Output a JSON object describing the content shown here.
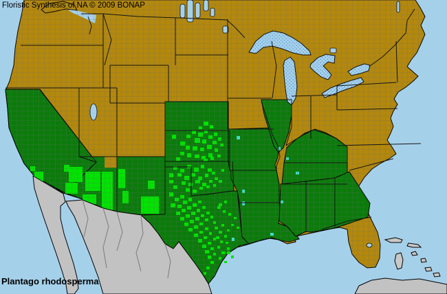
{
  "title": "Floristic Synthesis of NA © 2009 BONAP",
  "species": "Plantago rhodosperma",
  "map": {
    "colors": {
      "water": "#A5D0EA",
      "lake_dot": "#5B9BD5",
      "absent": "#B3880D",
      "state_present": "#0B7B0B",
      "county_present": "#00E400",
      "adventive": "#3FDCC8",
      "outside": "#C2C2C2",
      "county_line": "#6b6b6b",
      "state_line": "#151515"
    },
    "regions": {
      "ocean": "water",
      "strait_water": "water",
      "land_base": "absent",
      "vancouver_island": "absent",
      "arizona_ne_patch": "absent",
      "california": "state_present",
      "arizona": "state_present",
      "new_mexico": "state_present",
      "texas": "state_present",
      "oklahoma": "state_present",
      "kansas": "state_present",
      "nebraska": "state_present",
      "missouri": "state_present",
      "illinois": "state_present",
      "arkansas": "state_present",
      "louisiana": "state_present",
      "mississippi": "state_present",
      "alabama": "state_present",
      "georgia": "state_present",
      "tennessee": "state_present",
      "kentucky": "state_present",
      "mexico_mainland": "outside",
      "baja_california": "outside",
      "cuba": "outside",
      "bahamas": "outside"
    },
    "county_dots": [
      [
        50,
        250,
        13,
        18,
        "c"
      ],
      [
        44,
        242,
        7,
        7,
        "c"
      ],
      [
        95,
        266,
        18,
        16,
        "c"
      ],
      [
        100,
        243,
        20,
        22,
        "c"
      ],
      [
        124,
        250,
        22,
        28,
        "c"
      ],
      [
        148,
        250,
        16,
        56,
        "c"
      ],
      [
        120,
        283,
        20,
        14,
        "c"
      ],
      [
        93,
        240,
        8,
        10,
        "c"
      ],
      [
        172,
        246,
        10,
        28,
        "c"
      ],
      [
        178,
        278,
        9,
        18,
        "c"
      ],
      [
        205,
        286,
        26,
        26,
        "c"
      ],
      [
        215,
        263,
        10,
        12,
        "c"
      ],
      [
        296,
        177,
        7,
        6,
        "c"
      ],
      [
        305,
        182,
        5,
        5,
        "c"
      ],
      [
        289,
        184,
        5,
        4,
        "c"
      ],
      [
        250,
        196,
        6,
        6,
        "c"
      ],
      [
        262,
        206,
        7,
        6,
        "c"
      ],
      [
        271,
        196,
        6,
        5,
        "c"
      ],
      [
        279,
        190,
        6,
        5,
        "c"
      ],
      [
        288,
        193,
        7,
        6,
        "c"
      ],
      [
        297,
        189,
        5,
        5,
        "c"
      ],
      [
        283,
        201,
        8,
        7,
        "c"
      ],
      [
        294,
        203,
        6,
        6,
        "c"
      ],
      [
        303,
        197,
        6,
        5,
        "c"
      ],
      [
        311,
        193,
        5,
        5,
        "c"
      ],
      [
        270,
        212,
        6,
        6,
        "c"
      ],
      [
        280,
        213,
        7,
        6,
        "c"
      ],
      [
        291,
        215,
        6,
        5,
        "c"
      ],
      [
        301,
        211,
        7,
        6,
        "c"
      ],
      [
        309,
        205,
        6,
        5,
        "c"
      ],
      [
        317,
        200,
        5,
        5,
        "c"
      ],
      [
        262,
        221,
        6,
        5,
        "c"
      ],
      [
        272,
        223,
        6,
        6,
        "c"
      ],
      [
        283,
        225,
        7,
        5,
        "c"
      ],
      [
        293,
        227,
        6,
        5,
        "c"
      ],
      [
        303,
        223,
        6,
        6,
        "c"
      ],
      [
        312,
        216,
        5,
        5,
        "c"
      ],
      [
        320,
        209,
        5,
        4,
        "c"
      ],
      [
        256,
        229,
        6,
        5,
        "c"
      ],
      [
        296,
        231,
        6,
        4,
        "c"
      ],
      [
        306,
        228,
        5,
        5,
        "c"
      ],
      [
        316,
        225,
        5,
        4,
        "c"
      ],
      [
        252,
        242,
        6,
        5,
        "c"
      ],
      [
        262,
        246,
        6,
        5,
        "c"
      ],
      [
        272,
        240,
        6,
        5,
        "c"
      ],
      [
        282,
        244,
        7,
        6,
        "c"
      ],
      [
        292,
        240,
        5,
        5,
        "c"
      ],
      [
        302,
        245,
        6,
        5,
        "c"
      ],
      [
        258,
        252,
        6,
        5,
        "c"
      ],
      [
        268,
        256,
        7,
        6,
        "c"
      ],
      [
        278,
        252,
        6,
        5,
        "c"
      ],
      [
        288,
        257,
        6,
        5,
        "c"
      ],
      [
        298,
        253,
        5,
        5,
        "c"
      ],
      [
        308,
        250,
        5,
        4,
        "c"
      ],
      [
        264,
        264,
        6,
        5,
        "c"
      ],
      [
        274,
        266,
        6,
        5,
        "c"
      ],
      [
        284,
        262,
        7,
        5,
        "c"
      ],
      [
        294,
        266,
        6,
        5,
        "c"
      ],
      [
        304,
        262,
        5,
        4,
        "c"
      ],
      [
        312,
        258,
        5,
        4,
        "c"
      ],
      [
        270,
        274,
        6,
        5,
        "c"
      ],
      [
        280,
        276,
        6,
        5,
        "c"
      ],
      [
        290,
        272,
        5,
        4,
        "c"
      ],
      [
        300,
        270,
        5,
        4,
        "c"
      ],
      [
        310,
        268,
        4,
        4,
        "c"
      ],
      [
        318,
        262,
        5,
        4,
        "c"
      ],
      [
        322,
        246,
        4,
        4,
        "c"
      ],
      [
        246,
        252,
        6,
        6,
        "c"
      ],
      [
        246,
        262,
        6,
        5,
        "c"
      ],
      [
        252,
        270,
        6,
        5,
        "c"
      ],
      [
        246,
        280,
        6,
        6,
        "c"
      ],
      [
        254,
        288,
        6,
        5,
        "c"
      ],
      [
        262,
        284,
        6,
        5,
        "c"
      ],
      [
        248,
        296,
        7,
        6,
        "c"
      ],
      [
        258,
        298,
        6,
        5,
        "c"
      ],
      [
        266,
        292,
        6,
        5,
        "c"
      ],
      [
        274,
        288,
        5,
        5,
        "c"
      ],
      [
        256,
        308,
        6,
        5,
        "c"
      ],
      [
        264,
        304,
        6,
        5,
        "c"
      ],
      [
        272,
        300,
        6,
        5,
        "c"
      ],
      [
        280,
        296,
        6,
        5,
        "c"
      ],
      [
        288,
        292,
        5,
        4,
        "c"
      ],
      [
        262,
        316,
        6,
        5,
        "c"
      ],
      [
        270,
        312,
        6,
        5,
        "c"
      ],
      [
        278,
        308,
        6,
        5,
        "c"
      ],
      [
        286,
        304,
        5,
        5,
        "c"
      ],
      [
        294,
        300,
        5,
        4,
        "c"
      ],
      [
        268,
        324,
        6,
        5,
        "c"
      ],
      [
        276,
        320,
        6,
        5,
        "c"
      ],
      [
        284,
        316,
        6,
        5,
        "c"
      ],
      [
        292,
        312,
        5,
        4,
        "c"
      ],
      [
        300,
        308,
        5,
        4,
        "c"
      ],
      [
        274,
        332,
        6,
        5,
        "c"
      ],
      [
        282,
        328,
        6,
        5,
        "c"
      ],
      [
        290,
        324,
        5,
        4,
        "c"
      ],
      [
        298,
        318,
        5,
        4,
        "c"
      ],
      [
        306,
        314,
        4,
        4,
        "c"
      ],
      [
        282,
        340,
        6,
        5,
        "c"
      ],
      [
        290,
        336,
        5,
        4,
        "c"
      ],
      [
        298,
        331,
        5,
        4,
        "c"
      ],
      [
        288,
        348,
        6,
        5,
        "c"
      ],
      [
        296,
        344,
        5,
        4,
        "c"
      ],
      [
        304,
        338,
        4,
        4,
        "c"
      ],
      [
        294,
        356,
        6,
        5,
        "c"
      ],
      [
        302,
        352,
        5,
        4,
        "c"
      ],
      [
        310,
        346,
        4,
        4,
        "c"
      ],
      [
        298,
        364,
        6,
        5,
        "c"
      ],
      [
        306,
        360,
        5,
        4,
        "c"
      ],
      [
        302,
        372,
        5,
        5,
        "c"
      ],
      [
        310,
        368,
        4,
        4,
        "c"
      ],
      [
        306,
        380,
        5,
        4,
        "c"
      ],
      [
        300,
        388,
        5,
        4,
        "c"
      ],
      [
        296,
        396,
        4,
        4,
        "c"
      ],
      [
        312,
        330,
        5,
        4,
        "c"
      ],
      [
        318,
        336,
        5,
        4,
        "c"
      ],
      [
        314,
        344,
        5,
        4,
        "c"
      ],
      [
        320,
        350,
        4,
        4,
        "c"
      ],
      [
        326,
        342,
        4,
        4,
        "c"
      ],
      [
        322,
        326,
        4,
        4,
        "c"
      ],
      [
        330,
        334,
        4,
        3,
        "c"
      ],
      [
        328,
        352,
        4,
        3,
        "c"
      ],
      [
        316,
        358,
        4,
        4,
        "c"
      ],
      [
        310,
        322,
        4,
        4,
        "c"
      ],
      [
        322,
        366,
        5,
        4,
        "c"
      ],
      [
        330,
        360,
        4,
        4,
        "c"
      ],
      [
        318,
        374,
        4,
        4,
        "c"
      ],
      [
        326,
        380,
        4,
        3,
        "c"
      ],
      [
        330,
        366,
        5,
        4,
        "c"
      ],
      [
        336,
        372,
        4,
        4,
        "c"
      ],
      [
        316,
        300,
        5,
        4,
        "c"
      ],
      [
        324,
        306,
        4,
        4,
        "c"
      ],
      [
        332,
        310,
        4,
        4,
        "c"
      ],
      [
        340,
        316,
        4,
        3,
        "c"
      ],
      [
        336,
        326,
        4,
        3,
        "c"
      ],
      [
        344,
        330,
        4,
        3,
        "c"
      ],
      [
        318,
        296,
        5,
        4,
        "c"
      ],
      [
        326,
        292,
        4,
        4,
        "c"
      ],
      [
        344,
        198,
        5,
        5,
        "t"
      ],
      [
        404,
        214,
        4,
        5,
        "t"
      ],
      [
        416,
        229,
        4,
        4,
        "t"
      ],
      [
        352,
        276,
        4,
        5,
        "t"
      ],
      [
        352,
        293,
        4,
        6,
        "t"
      ],
      [
        393,
        339,
        5,
        4,
        "t"
      ],
      [
        430,
        250,
        5,
        4,
        "t"
      ],
      [
        408,
        292,
        4,
        4,
        "t"
      ],
      [
        337,
        346,
        4,
        5,
        "t"
      ]
    ]
  }
}
